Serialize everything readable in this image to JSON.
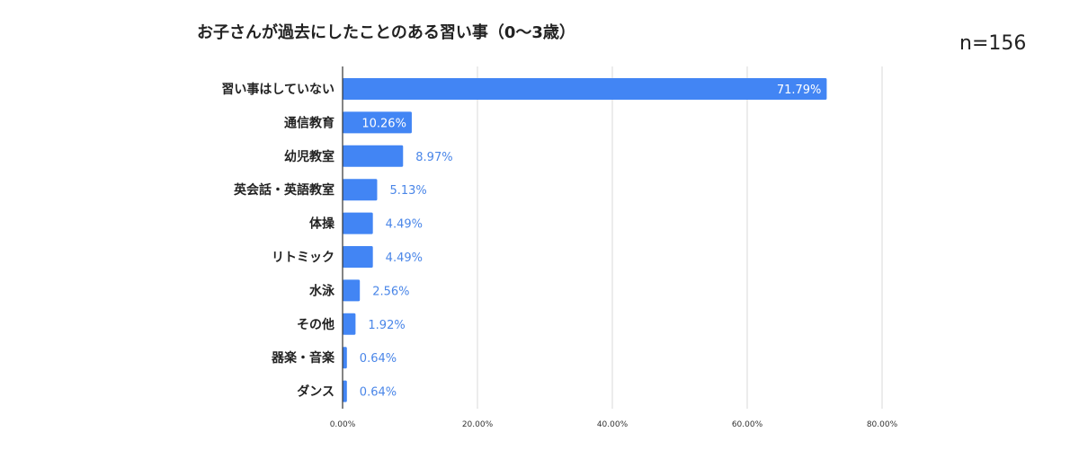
{
  "title": "お子さんが過去にしたことのある習い事（0〜3歳）",
  "sample_size": "n=156",
  "colors": {
    "bar": "#4285f4",
    "grid": "#d9d9d9",
    "axis": "#333333",
    "label_outside": "#4a86e8"
  },
  "chart_data": {
    "type": "bar",
    "orientation": "horizontal",
    "title": "お子さんが過去にしたことのある習い事（0〜3歳）",
    "categories": [
      "習い事はしていない",
      "通信教育",
      "幼児教室",
      "英会話・英語教室",
      "体操",
      "リトミック",
      "水泳",
      "その他",
      "器楽・音楽",
      "ダンス"
    ],
    "values": [
      71.79,
      10.26,
      8.97,
      5.13,
      4.49,
      4.49,
      2.56,
      1.92,
      0.64,
      0.64
    ],
    "value_labels": [
      "71.79%",
      "10.26%",
      "8.97%",
      "5.13%",
      "4.49%",
      "4.49%",
      "2.56%",
      "1.92%",
      "0.64%",
      "0.64%"
    ],
    "xlim": [
      0,
      80
    ],
    "x_ticks": [
      0,
      20,
      40,
      60,
      80
    ],
    "x_tick_labels": [
      "0.00%",
      "20.00%",
      "40.00%",
      "60.00%",
      "80.00%"
    ],
    "grid": true,
    "legend": "none"
  }
}
